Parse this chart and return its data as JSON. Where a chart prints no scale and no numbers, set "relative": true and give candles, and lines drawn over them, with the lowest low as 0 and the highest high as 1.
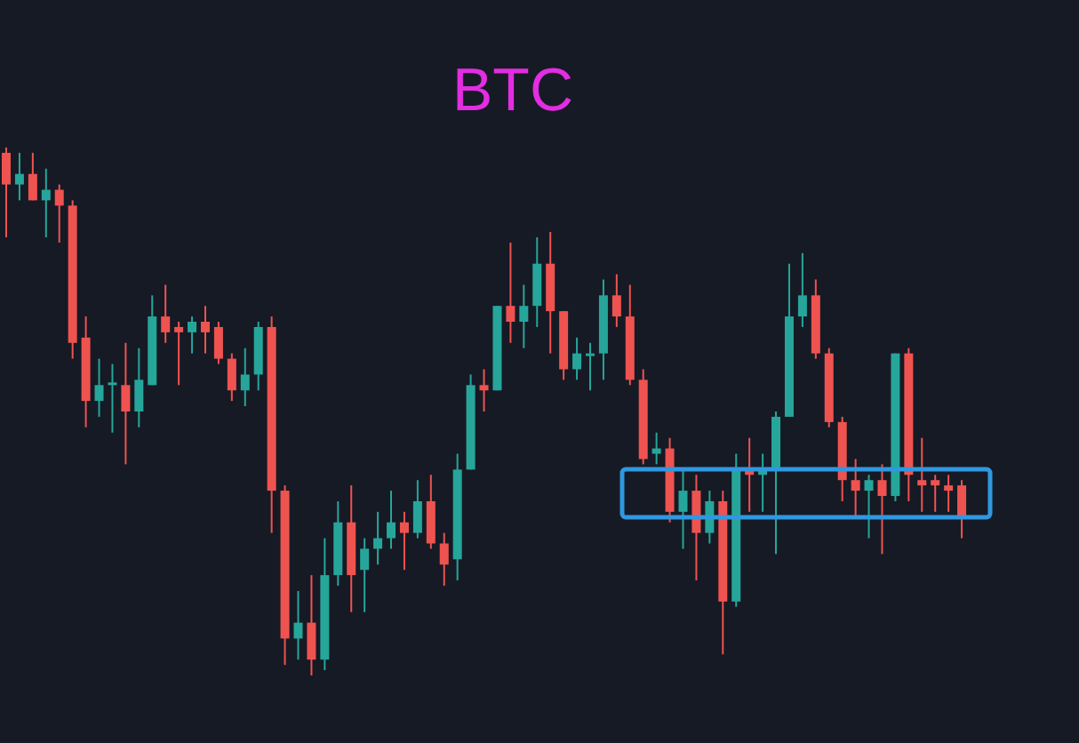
{
  "chart_data": {
    "type": "candlestick",
    "title": "BTC",
    "relative": true,
    "categories": [
      null,
      null,
      null,
      null,
      null,
      null,
      null,
      null,
      null,
      null,
      null,
      null,
      null,
      null,
      null,
      null,
      null,
      null,
      null,
      null,
      null,
      null,
      null,
      null,
      null,
      null,
      null,
      null,
      null,
      null,
      null,
      null,
      null,
      null,
      null,
      null,
      null,
      null,
      null,
      null,
      null,
      null,
      null,
      null,
      null,
      null,
      null,
      null,
      null,
      null,
      null,
      null,
      null,
      null,
      null,
      null,
      null,
      null,
      null,
      null,
      null,
      null,
      null,
      null,
      null,
      null,
      null,
      null,
      null,
      null,
      null,
      null,
      null
    ],
    "ohlc": [
      [
        0.99,
        1,
        0.83,
        0.93
      ],
      [
        0.93,
        0.99,
        0.9,
        0.95
      ],
      [
        0.95,
        0.99,
        0.9,
        0.9
      ],
      [
        0.9,
        0.96,
        0.83,
        0.92
      ],
      [
        0.92,
        0.93,
        0.82,
        0.89
      ],
      [
        0.89,
        0.9,
        0.6,
        0.63
      ],
      [
        0.64,
        0.68,
        0.47,
        0.52
      ],
      [
        0.52,
        0.6,
        0.49,
        0.55
      ],
      [
        0.55,
        0.59,
        0.46,
        0.555
      ],
      [
        0.55,
        0.63,
        0.4,
        0.5
      ],
      [
        0.5,
        0.62,
        0.47,
        0.56
      ],
      [
        0.55,
        0.72,
        0.55,
        0.68
      ],
      [
        0.68,
        0.74,
        0.63,
        0.65
      ],
      [
        0.66,
        0.67,
        0.55,
        0.65
      ],
      [
        0.65,
        0.68,
        0.61,
        0.67
      ],
      [
        0.67,
        0.7,
        0.61,
        0.65
      ],
      [
        0.66,
        0.67,
        0.59,
        0.6
      ],
      [
        0.6,
        0.61,
        0.52,
        0.54
      ],
      [
        0.54,
        0.62,
        0.51,
        0.57
      ],
      [
        0.57,
        0.67,
        0.54,
        0.66
      ],
      [
        0.66,
        0.68,
        0.27,
        0.35
      ],
      [
        0.35,
        0.36,
        0.02,
        0.07
      ],
      [
        0.07,
        0.16,
        0.03,
        0.1
      ],
      [
        0.1,
        0.19,
        0,
        0.03
      ],
      [
        0.03,
        0.26,
        0.01,
        0.19
      ],
      [
        0.19,
        0.33,
        0.17,
        0.29
      ],
      [
        0.29,
        0.36,
        0.12,
        0.19
      ],
      [
        0.2,
        0.26,
        0.12,
        0.24
      ],
      [
        0.24,
        0.31,
        0.21,
        0.26
      ],
      [
        0.26,
        0.35,
        0.24,
        0.29
      ],
      [
        0.29,
        0.31,
        0.2,
        0.27
      ],
      [
        0.27,
        0.37,
        0.26,
        0.33
      ],
      [
        0.33,
        0.38,
        0.24,
        0.25
      ],
      [
        0.25,
        0.27,
        0.17,
        0.21
      ],
      [
        0.22,
        0.42,
        0.18,
        0.39
      ],
      [
        0.39,
        0.57,
        0.39,
        0.55
      ],
      [
        0.55,
        0.58,
        0.5,
        0.54
      ],
      [
        0.54,
        0.7,
        0.54,
        0.7
      ],
      [
        0.7,
        0.82,
        0.63,
        0.67
      ],
      [
        0.67,
        0.74,
        0.62,
        0.7
      ],
      [
        0.7,
        0.83,
        0.66,
        0.78
      ],
      [
        0.78,
        0.84,
        0.61,
        0.69
      ],
      [
        0.69,
        0.69,
        0.56,
        0.58
      ],
      [
        0.58,
        0.64,
        0.56,
        0.61
      ],
      [
        0.605,
        0.63,
        0.54,
        0.61
      ],
      [
        0.61,
        0.75,
        0.56,
        0.72
      ],
      [
        0.72,
        0.76,
        0.66,
        0.68
      ],
      [
        0.68,
        0.74,
        0.55,
        0.56
      ],
      [
        0.56,
        0.58,
        0.4,
        0.41
      ],
      [
        0.42,
        0.46,
        0.4,
        0.43
      ],
      [
        0.43,
        0.45,
        0.29,
        0.31
      ],
      [
        0.31,
        0.39,
        0.24,
        0.35
      ],
      [
        0.35,
        0.38,
        0.18,
        0.27
      ],
      [
        0.27,
        0.35,
        0.25,
        0.33
      ],
      [
        0.33,
        0.35,
        0.04,
        0.14
      ],
      [
        0.14,
        0.42,
        0.13,
        0.39
      ],
      [
        0.39,
        0.45,
        0.31,
        0.38
      ],
      [
        0.38,
        0.42,
        0.31,
        0.39
      ],
      [
        0.39,
        0.5,
        0.23,
        0.49
      ],
      [
        0.49,
        0.78,
        0.49,
        0.68
      ],
      [
        0.68,
        0.8,
        0.66,
        0.72
      ],
      [
        0.72,
        0.75,
        0.6,
        0.61
      ],
      [
        0.61,
        0.62,
        0.47,
        0.48
      ],
      [
        0.48,
        0.49,
        0.33,
        0.37
      ],
      [
        0.37,
        0.41,
        0.3,
        0.35
      ],
      [
        0.35,
        0.38,
        0.26,
        0.37
      ],
      [
        0.37,
        0.4,
        0.23,
        0.34
      ],
      [
        0.34,
        0.61,
        0.33,
        0.61
      ],
      [
        0.61,
        0.62,
        0.33,
        0.38
      ],
      [
        0.37,
        0.45,
        0.31,
        0.36
      ],
      [
        0.37,
        0.38,
        0.31,
        0.36
      ],
      [
        0.36,
        0.38,
        0.31,
        0.35
      ],
      [
        0.36,
        0.37,
        0.26,
        0.3
      ]
    ],
    "colors": [
      "#ef5350",
      "#26a69a",
      "#ef5350",
      "#26a69a",
      "#ef5350",
      "#ef5350",
      "#ef5350",
      "#26a69a",
      "#26a69a",
      "#ef5350",
      "#26a69a",
      "#26a69a",
      "#ef5350",
      "#ef5350",
      "#26a69a",
      "#ef5350",
      "#ef5350",
      "#ef5350",
      "#26a69a",
      "#26a69a",
      "#ef5350",
      "#ef5350",
      "#26a69a",
      "#ef5350",
      "#26a69a",
      "#26a69a",
      "#ef5350",
      "#26a69a",
      "#26a69a",
      "#26a69a",
      "#ef5350",
      "#26a69a",
      "#ef5350",
      "#ef5350",
      "#26a69a",
      "#26a69a",
      "#ef5350",
      "#26a69a",
      "#ef5350",
      "#26a69a",
      "#26a69a",
      "#ef5350",
      "#ef5350",
      "#26a69a",
      "#26a69a",
      "#26a69a",
      "#ef5350",
      "#ef5350",
      "#ef5350",
      "#26a69a",
      "#ef5350",
      "#26a69a",
      "#ef5350",
      "#26a69a",
      "#ef5350",
      "#26a69a",
      "#ef5350",
      "#26a69a",
      "#26a69a",
      "#26a69a",
      "#26a69a",
      "#ef5350",
      "#ef5350",
      "#ef5350",
      "#ef5350",
      "#26a69a",
      "#ef5350",
      "#26a69a",
      "#ef5350",
      "#ef5350",
      "#ef5350",
      "#ef5350",
      "#ef5350"
    ]
  }
}
